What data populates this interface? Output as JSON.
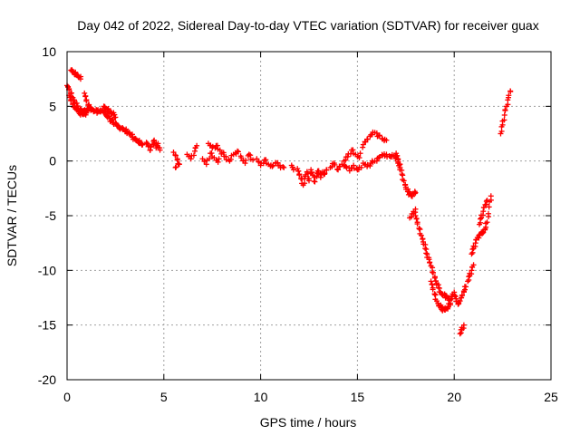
{
  "chart_data": {
    "type": "scatter",
    "title": "Day 042 of 2022, Sidereal Day-to-day VTEC variation (SDTVAR) for receiver guax",
    "xlabel": "GPS time / hours",
    "ylabel": "SDTVAR / TECUs",
    "xlim": [
      0,
      25
    ],
    "ylim": [
      -20,
      10
    ],
    "xticks": [
      0,
      5,
      10,
      15,
      20,
      25
    ],
    "xtick_labels": [
      "0",
      "5",
      "10",
      "15",
      "20",
      "25"
    ],
    "yticks": [
      10,
      5,
      0,
      -5,
      -10,
      -15,
      -20
    ],
    "ytick_labels": [
      "10",
      "5",
      "0",
      "-5",
      "-10",
      "-15",
      "-20"
    ],
    "grid": true,
    "marker": "plus",
    "color": "#ff0000",
    "series": [
      {
        "name": "SDTVAR",
        "segments": [
          [
            [
              0.0,
              6.9
            ],
            [
              0.1,
              6.6
            ],
            [
              0.2,
              6.2
            ],
            [
              0.3,
              5.8
            ],
            [
              0.4,
              5.4
            ],
            [
              0.5,
              5.0
            ],
            [
              0.6,
              4.8
            ],
            [
              0.7,
              4.7
            ],
            [
              0.8,
              4.6
            ],
            [
              0.9,
              4.5
            ],
            [
              1.0,
              4.6
            ],
            [
              1.1,
              4.8
            ],
            [
              1.2,
              4.8
            ],
            [
              1.3,
              4.7
            ],
            [
              1.4,
              4.6
            ],
            [
              1.5,
              4.6
            ],
            [
              1.6,
              4.5
            ],
            [
              1.7,
              4.6
            ],
            [
              1.8,
              4.6
            ],
            [
              1.9,
              4.4
            ],
            [
              2.0,
              4.3
            ],
            [
              2.1,
              4.1
            ],
            [
              2.2,
              3.9
            ],
            [
              2.3,
              3.7
            ],
            [
              2.4,
              3.5
            ],
            [
              2.5,
              3.4
            ],
            [
              2.6,
              3.2
            ],
            [
              2.7,
              3.1
            ],
            [
              2.8,
              3.0
            ],
            [
              2.9,
              2.9
            ],
            [
              3.0,
              2.8
            ],
            [
              3.1,
              2.7
            ],
            [
              3.2,
              2.5
            ],
            [
              3.3,
              2.4
            ],
            [
              3.4,
              2.2
            ],
            [
              3.5,
              2.0
            ],
            [
              3.6,
              1.9
            ],
            [
              3.7,
              1.8
            ],
            [
              3.8,
              1.6
            ],
            [
              3.9,
              1.5
            ]
          ],
          [
            [
              0.1,
              6.0
            ],
            [
              0.2,
              5.6
            ],
            [
              0.3,
              5.2
            ],
            [
              0.4,
              4.9
            ],
            [
              0.5,
              4.7
            ],
            [
              0.6,
              4.5
            ],
            [
              0.7,
              4.4
            ],
            [
              0.8,
              4.3
            ],
            [
              0.9,
              4.3
            ],
            [
              1.0,
              4.4
            ]
          ],
          [
            [
              0.2,
              8.3
            ],
            [
              0.3,
              8.2
            ],
            [
              0.4,
              8.0
            ],
            [
              0.5,
              7.9
            ],
            [
              0.6,
              7.7
            ],
            [
              0.7,
              7.5
            ]
          ],
          [
            [
              0.9,
              6.2
            ],
            [
              1.0,
              5.6
            ],
            [
              1.1,
              5.1
            ],
            [
              1.2,
              4.8
            ]
          ],
          [
            [
              1.9,
              5.0
            ],
            [
              2.0,
              4.8
            ],
            [
              2.1,
              4.7
            ],
            [
              2.2,
              4.5
            ],
            [
              2.3,
              4.4
            ],
            [
              2.4,
              4.2
            ],
            [
              2.5,
              4.0
            ]
          ],
          [
            [
              4.1,
              1.7
            ],
            [
              4.2,
              1.4
            ],
            [
              4.3,
              1.0
            ],
            [
              4.4,
              1.5
            ],
            [
              4.5,
              1.9
            ],
            [
              4.6,
              1.2
            ],
            [
              4.7,
              1.6
            ],
            [
              4.8,
              1.0
            ]
          ],
          [
            [
              5.5,
              0.8
            ],
            [
              5.7,
              0.2
            ],
            [
              5.8,
              -0.3
            ],
            [
              5.6,
              -0.6
            ]
          ],
          [
            [
              6.2,
              0.6
            ],
            [
              6.4,
              0.2
            ],
            [
              6.6,
              0.9
            ],
            [
              6.7,
              1.4
            ]
          ],
          [
            [
              7.0,
              0.2
            ],
            [
              7.2,
              -0.3
            ],
            [
              7.4,
              0.7
            ],
            [
              7.6,
              0.3
            ],
            [
              7.8,
              -0.1
            ],
            [
              8.0,
              0.8
            ],
            [
              8.2,
              0.4
            ],
            [
              8.4,
              0.0
            ],
            [
              8.6,
              0.6
            ],
            [
              8.8,
              0.9
            ],
            [
              9.0,
              0.3
            ],
            [
              9.2,
              -0.2
            ],
            [
              9.4,
              0.6
            ],
            [
              9.6,
              0.1
            ]
          ],
          [
            [
              7.3,
              1.6
            ],
            [
              7.5,
              1.2
            ],
            [
              7.7,
              1.4
            ],
            [
              7.9,
              1.0
            ]
          ],
          [
            [
              9.8,
              0.2
            ],
            [
              10.0,
              -0.4
            ],
            [
              10.2,
              0.1
            ],
            [
              10.4,
              -0.3
            ],
            [
              10.6,
              -0.5
            ],
            [
              10.8,
              -0.2
            ],
            [
              11.0,
              -0.4
            ],
            [
              11.2,
              -0.6
            ]
          ],
          [
            [
              11.6,
              -0.4
            ],
            [
              11.7,
              -0.8
            ]
          ],
          [
            [
              11.9,
              -0.7
            ],
            [
              12.0,
              -1.2
            ],
            [
              12.1,
              -1.6
            ],
            [
              12.2,
              -2.2
            ],
            [
              12.3,
              -1.4
            ],
            [
              12.4,
              -1.0
            ],
            [
              12.5,
              -1.8
            ],
            [
              12.6,
              -0.8
            ],
            [
              12.7,
              -1.3
            ],
            [
              12.8,
              -1.9
            ],
            [
              12.9,
              -1.1
            ],
            [
              13.0,
              -0.9
            ],
            [
              13.1,
              -1.5
            ],
            [
              13.2,
              -1.0
            ],
            [
              13.3,
              -1.2
            ],
            [
              13.4,
              -0.8
            ]
          ],
          [
            [
              13.6,
              -0.6
            ],
            [
              13.8,
              -0.2
            ],
            [
              14.0,
              -0.8
            ],
            [
              14.2,
              -0.3
            ],
            [
              14.4,
              -0.5
            ],
            [
              14.6,
              -0.9
            ],
            [
              14.8,
              -0.4
            ],
            [
              15.0,
              -0.8
            ],
            [
              15.2,
              -0.6
            ]
          ],
          [
            [
              14.3,
              0.0
            ],
            [
              14.5,
              0.4
            ],
            [
              14.7,
              1.0
            ],
            [
              14.9,
              0.6
            ],
            [
              15.1,
              0.3
            ],
            [
              15.3,
              1.5
            ],
            [
              15.5,
              2.0
            ],
            [
              15.7,
              2.4
            ],
            [
              15.9,
              2.6
            ],
            [
              16.1,
              2.3
            ],
            [
              16.3,
              2.0
            ],
            [
              16.5,
              1.9
            ]
          ],
          [
            [
              15.3,
              -0.2
            ],
            [
              15.5,
              -0.5
            ],
            [
              15.7,
              -0.2
            ],
            [
              15.9,
              0.0
            ],
            [
              16.1,
              0.3
            ],
            [
              16.3,
              0.5
            ],
            [
              16.5,
              0.6
            ],
            [
              16.7,
              0.4
            ],
            [
              16.9,
              0.5
            ],
            [
              17.0,
              0.3
            ],
            [
              17.1,
              -0.2
            ],
            [
              17.2,
              -0.6
            ],
            [
              17.3,
              -1.2
            ],
            [
              17.4,
              -1.8
            ],
            [
              17.5,
              -2.4
            ],
            [
              17.6,
              -2.8
            ],
            [
              17.7,
              -3.0
            ],
            [
              17.8,
              -3.2
            ],
            [
              17.9,
              -3.0
            ],
            [
              18.0,
              -2.9
            ]
          ],
          [
            [
              17.0,
              0.7
            ],
            [
              17.1,
              0.2
            ],
            [
              17.2,
              -0.3
            ]
          ],
          [
            [
              17.7,
              -5.2
            ],
            [
              17.9,
              -4.8
            ],
            [
              18.0,
              -4.4
            ]
          ],
          [
            [
              18.0,
              -5.0
            ],
            [
              18.1,
              -5.6
            ],
            [
              18.2,
              -6.2
            ],
            [
              18.3,
              -6.8
            ],
            [
              18.4,
              -7.4
            ],
            [
              18.5,
              -8.0
            ],
            [
              18.6,
              -8.5
            ],
            [
              18.7,
              -9.0
            ],
            [
              18.8,
              -9.6
            ],
            [
              18.9,
              -10.2
            ],
            [
              19.0,
              -10.7
            ],
            [
              19.1,
              -11.2
            ],
            [
              19.2,
              -11.6
            ],
            [
              19.3,
              -12.0
            ],
            [
              19.4,
              -12.2
            ],
            [
              19.5,
              -12.3
            ],
            [
              19.6,
              -12.4
            ],
            [
              19.7,
              -12.6
            ],
            [
              19.8,
              -12.7
            ],
            [
              19.9,
              -12.4
            ],
            [
              20.0,
              -12.0
            ],
            [
              20.1,
              -12.6
            ],
            [
              20.2,
              -13.1
            ],
            [
              20.3,
              -12.8
            ],
            [
              20.4,
              -12.3
            ],
            [
              20.5,
              -11.9
            ],
            [
              20.6,
              -11.5
            ]
          ],
          [
            [
              18.8,
              -11.0
            ],
            [
              18.9,
              -11.6
            ],
            [
              19.0,
              -12.2
            ],
            [
              19.1,
              -12.8
            ],
            [
              19.2,
              -13.2
            ],
            [
              19.3,
              -13.4
            ],
            [
              19.4,
              -13.5
            ],
            [
              19.5,
              -13.6
            ],
            [
              19.6,
              -13.5
            ],
            [
              19.7,
              -13.3
            ],
            [
              19.8,
              -13.0
            ]
          ],
          [
            [
              20.3,
              -15.8
            ],
            [
              20.4,
              -15.4
            ],
            [
              20.5,
              -15.0
            ]
          ],
          [
            [
              20.7,
              -11.0
            ],
            [
              20.8,
              -10.5
            ],
            [
              20.9,
              -10.0
            ],
            [
              21.0,
              -9.5
            ]
          ],
          [
            [
              20.9,
              -8.5
            ],
            [
              21.0,
              -8.0
            ],
            [
              21.1,
              -7.5
            ],
            [
              21.2,
              -7.0
            ],
            [
              21.3,
              -6.8
            ],
            [
              21.4,
              -6.6
            ],
            [
              21.5,
              -6.5
            ],
            [
              21.6,
              -6.2
            ],
            [
              21.7,
              -5.6
            ],
            [
              21.8,
              -4.2
            ],
            [
              21.9,
              -3.2
            ]
          ],
          [
            [
              21.3,
              -5.8
            ],
            [
              21.4,
              -5.2
            ],
            [
              21.5,
              -4.6
            ],
            [
              21.6,
              -4.0
            ],
            [
              21.7,
              -3.6
            ]
          ],
          [
            [
              22.4,
              2.5
            ],
            [
              22.5,
              3.3
            ],
            [
              22.6,
              4.2
            ],
            [
              22.7,
              5.0
            ],
            [
              22.8,
              5.8
            ],
            [
              22.9,
              6.4
            ]
          ]
        ]
      }
    ]
  }
}
